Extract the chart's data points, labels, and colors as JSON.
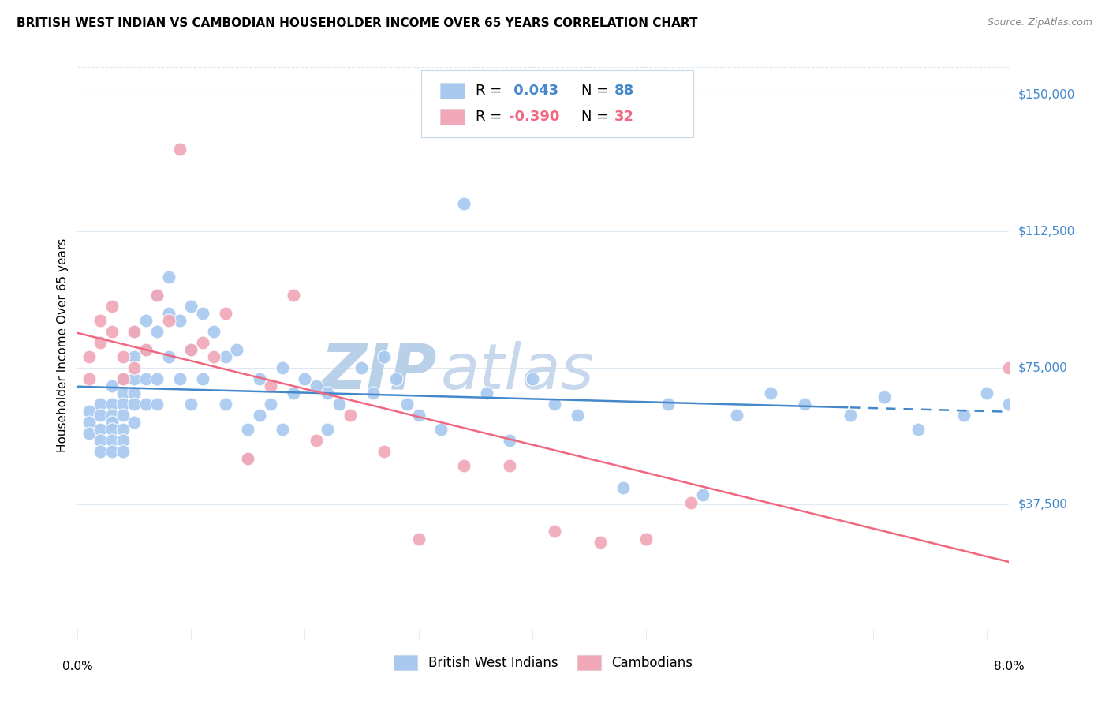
{
  "title": "BRITISH WEST INDIAN VS CAMBODIAN HOUSEHOLDER INCOME OVER 65 YEARS CORRELATION CHART",
  "source": "Source: ZipAtlas.com",
  "ylabel": "Householder Income Over 65 years",
  "yticks_labels": [
    "$37,500",
    "$75,000",
    "$112,500",
    "$150,000"
  ],
  "yticks_values": [
    37500,
    75000,
    112500,
    150000
  ],
  "ymin": 0,
  "ymax": 162500,
  "xmin": 0.0,
  "xmax": 0.082,
  "bwi_color": "#a8c8f0",
  "cam_color": "#f0a8b8",
  "bwi_line_color": "#4488cc",
  "cam_line_color": "#f06880",
  "watermark_zip_color": "#b8d0e8",
  "watermark_atlas_color": "#c8d8ec",
  "background_color": "#ffffff",
  "grid_color": "#dde8f0",
  "bwi_x": [
    0.001,
    0.001,
    0.001,
    0.002,
    0.002,
    0.002,
    0.002,
    0.002,
    0.003,
    0.003,
    0.003,
    0.003,
    0.003,
    0.003,
    0.003,
    0.004,
    0.004,
    0.004,
    0.004,
    0.004,
    0.004,
    0.004,
    0.005,
    0.005,
    0.005,
    0.005,
    0.005,
    0.005,
    0.006,
    0.006,
    0.006,
    0.006,
    0.007,
    0.007,
    0.007,
    0.007,
    0.008,
    0.008,
    0.008,
    0.009,
    0.009,
    0.01,
    0.01,
    0.01,
    0.011,
    0.011,
    0.012,
    0.013,
    0.013,
    0.014,
    0.015,
    0.015,
    0.016,
    0.016,
    0.017,
    0.018,
    0.018,
    0.019,
    0.02,
    0.021,
    0.022,
    0.022,
    0.023,
    0.025,
    0.026,
    0.027,
    0.028,
    0.029,
    0.03,
    0.032,
    0.034,
    0.036,
    0.038,
    0.04,
    0.042,
    0.044,
    0.048,
    0.052,
    0.055,
    0.058,
    0.061,
    0.064,
    0.068,
    0.071,
    0.074,
    0.078,
    0.08,
    0.082
  ],
  "bwi_y": [
    63000,
    60000,
    57000,
    65000,
    62000,
    58000,
    55000,
    52000,
    70000,
    65000,
    62000,
    60000,
    58000,
    55000,
    52000,
    72000,
    68000,
    65000,
    62000,
    58000,
    55000,
    52000,
    85000,
    78000,
    72000,
    68000,
    65000,
    60000,
    88000,
    80000,
    72000,
    65000,
    95000,
    85000,
    72000,
    65000,
    100000,
    90000,
    78000,
    88000,
    72000,
    92000,
    80000,
    65000,
    90000,
    72000,
    85000,
    78000,
    65000,
    80000,
    58000,
    50000,
    72000,
    62000,
    65000,
    75000,
    58000,
    68000,
    72000,
    70000,
    68000,
    58000,
    65000,
    75000,
    68000,
    78000,
    72000,
    65000,
    62000,
    58000,
    120000,
    68000,
    55000,
    72000,
    65000,
    62000,
    42000,
    65000,
    40000,
    62000,
    68000,
    65000,
    62000,
    67000,
    58000,
    62000,
    68000,
    65000
  ],
  "cam_x": [
    0.001,
    0.001,
    0.002,
    0.002,
    0.003,
    0.003,
    0.004,
    0.004,
    0.005,
    0.005,
    0.006,
    0.007,
    0.008,
    0.009,
    0.01,
    0.011,
    0.012,
    0.013,
    0.015,
    0.017,
    0.019,
    0.021,
    0.024,
    0.027,
    0.03,
    0.034,
    0.038,
    0.042,
    0.046,
    0.05,
    0.054,
    0.082
  ],
  "cam_y": [
    78000,
    72000,
    88000,
    82000,
    92000,
    85000,
    78000,
    72000,
    85000,
    75000,
    80000,
    95000,
    88000,
    135000,
    80000,
    82000,
    78000,
    90000,
    50000,
    70000,
    95000,
    55000,
    62000,
    52000,
    28000,
    48000,
    48000,
    30000,
    27000,
    28000,
    38000,
    75000
  ]
}
